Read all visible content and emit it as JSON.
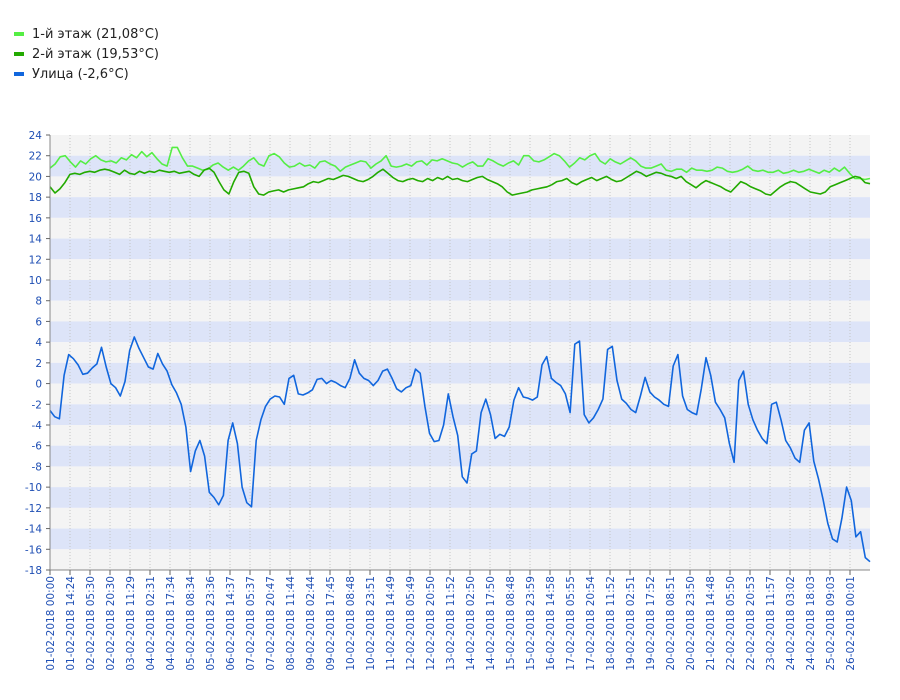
{
  "chart_data": {
    "type": "line",
    "title": "",
    "xlabel": "",
    "ylabel": "",
    "ylim": [
      -18,
      24
    ],
    "yticks": [
      24,
      22,
      20,
      18,
      16,
      14,
      12,
      10,
      8,
      6,
      4,
      2,
      0,
      -2,
      -4,
      -6,
      -8,
      -10,
      -12,
      -14,
      -16,
      -18
    ],
    "grid": "horizontal bands",
    "legend_position": "top-left",
    "x_tick_labels": [
      "01-02-2018 00:00",
      "01-02-2018 14:24",
      "02-02-2018 05:30",
      "02-02-2018 20:30",
      "03-02-2018 11:29",
      "04-02-2018 02:31",
      "04-02-2018 17:34",
      "05-02-2018 08:34",
      "05-02-2018 23:36",
      "06-02-2018 14:37",
      "07-02-2018 05:37",
      "07-02-2018 20:47",
      "08-02-2018 11:44",
      "09-02-2018 02:44",
      "09-02-2018 17:45",
      "10-02-2018 08:48",
      "10-02-2018 23:51",
      "11-02-2018 14:49",
      "12-02-2018 05:49",
      "12-02-2018 20:50",
      "13-02-2018 11:52",
      "14-02-2018 02:50",
      "14-02-2018 17:50",
      "15-02-2018 08:48",
      "15-02-2018 23:59",
      "16-02-2018 14:58",
      "17-02-2018 05:55",
      "17-02-2018 20:54",
      "18-02-2018 11:52",
      "19-02-2018 02:51",
      "19-02-2018 17:52",
      "20-02-2018 08:51",
      "20-02-2018 23:50",
      "21-02-2018 14:48",
      "22-02-2018 05:50",
      "22-02-2018 20:53",
      "23-02-2018 11:57",
      "24-02-2018 03:02",
      "24-02-2018 18:03",
      "25-02-2018 09:03",
      "26-02-2018 00:01"
    ],
    "series": [
      {
        "name": "1-й этаж (21,08°C)",
        "color": "#55ee44",
        "values": [
          20.8,
          21.2,
          21.9,
          22.0,
          21.4,
          20.9,
          21.5,
          21.2,
          21.7,
          22.0,
          21.6,
          21.4,
          21.5,
          21.3,
          21.8,
          21.6,
          22.1,
          21.8,
          22.4,
          21.9,
          22.3,
          21.7,
          21.2,
          21.0,
          22.8,
          22.8,
          21.8,
          21.0,
          21.0,
          20.8,
          20.6,
          20.7,
          21.1,
          21.3,
          20.9,
          20.6,
          20.9,
          20.6,
          21.0,
          21.5,
          21.8,
          21.2,
          21.0,
          22.0,
          22.2,
          21.9,
          21.3,
          20.9,
          21.0,
          21.3,
          21.0,
          21.1,
          20.8,
          21.4,
          21.5,
          21.2,
          21.0,
          20.5,
          20.9,
          21.1,
          21.3,
          21.5,
          21.4,
          20.8,
          21.2,
          21.5,
          22.0,
          21.0,
          20.9,
          21.0,
          21.2,
          21.0,
          21.4,
          21.5,
          21.1,
          21.6,
          21.5,
          21.7,
          21.5,
          21.3,
          21.2,
          20.9,
          21.2,
          21.4,
          21.0,
          21.0,
          21.7,
          21.5,
          21.2,
          21.0,
          21.3,
          21.5,
          21.1,
          22.0,
          22.0,
          21.5,
          21.4,
          21.6,
          21.9,
          22.2,
          22.0,
          21.5,
          20.9,
          21.3,
          21.8,
          21.6,
          22.0,
          22.2,
          21.5,
          21.2,
          21.7,
          21.4,
          21.2,
          21.5,
          21.8,
          21.5,
          21.0,
          20.8,
          20.8,
          21.0,
          21.2,
          20.6,
          20.5,
          20.7,
          20.7,
          20.4,
          20.8,
          20.6,
          20.6,
          20.5,
          20.6,
          20.9,
          20.8,
          20.5,
          20.4,
          20.5,
          20.7,
          21.0,
          20.6,
          20.5,
          20.6,
          20.4,
          20.4,
          20.6,
          20.3,
          20.4,
          20.6,
          20.4,
          20.5,
          20.7,
          20.5,
          20.3,
          20.6,
          20.4,
          20.8,
          20.5,
          20.9,
          20.3,
          19.8,
          19.8,
          19.7,
          19.8
        ]
      },
      {
        "name": "2-й этаж (19,53°C)",
        "color": "#22aa00",
        "values": [
          19.0,
          18.4,
          18.8,
          19.4,
          20.2,
          20.3,
          20.2,
          20.4,
          20.5,
          20.4,
          20.6,
          20.7,
          20.6,
          20.4,
          20.2,
          20.6,
          20.3,
          20.2,
          20.5,
          20.3,
          20.5,
          20.4,
          20.6,
          20.5,
          20.4,
          20.5,
          20.3,
          20.4,
          20.5,
          20.2,
          20.0,
          20.6,
          20.8,
          20.4,
          19.5,
          18.7,
          18.3,
          19.5,
          20.4,
          20.5,
          20.3,
          19.0,
          18.3,
          18.2,
          18.5,
          18.6,
          18.7,
          18.5,
          18.7,
          18.8,
          18.9,
          19.0,
          19.3,
          19.5,
          19.4,
          19.6,
          19.8,
          19.7,
          19.9,
          20.1,
          20.0,
          19.8,
          19.6,
          19.5,
          19.7,
          20.0,
          20.4,
          20.7,
          20.3,
          19.9,
          19.6,
          19.5,
          19.7,
          19.8,
          19.6,
          19.5,
          19.8,
          19.6,
          19.9,
          19.7,
          20.0,
          19.7,
          19.8,
          19.6,
          19.5,
          19.7,
          19.9,
          20.0,
          19.7,
          19.5,
          19.3,
          19.0,
          18.5,
          18.2,
          18.3,
          18.4,
          18.5,
          18.7,
          18.8,
          18.9,
          19.0,
          19.2,
          19.5,
          19.6,
          19.8,
          19.4,
          19.2,
          19.5,
          19.7,
          19.9,
          19.6,
          19.8,
          20.0,
          19.7,
          19.5,
          19.6,
          19.9,
          20.2,
          20.5,
          20.3,
          20.0,
          20.2,
          20.4,
          20.3,
          20.1,
          20.0,
          19.8,
          20.0,
          19.5,
          19.2,
          18.9,
          19.3,
          19.6,
          19.4,
          19.2,
          19.0,
          18.7,
          18.5,
          19.0,
          19.5,
          19.3,
          19.0,
          18.8,
          18.6,
          18.3,
          18.2,
          18.6,
          19.0,
          19.3,
          19.5,
          19.4,
          19.1,
          18.8,
          18.5,
          18.4,
          18.3,
          18.5,
          19.0,
          19.2,
          19.4,
          19.6,
          19.8,
          20.0,
          19.9,
          19.4,
          19.3
        ]
      },
      {
        "name": "Улица (-2,6°C)",
        "color": "#1166dd",
        "values": [
          -2.6,
          -3.2,
          -3.4,
          0.8,
          2.8,
          2.4,
          1.8,
          0.9,
          1.0,
          1.5,
          1.9,
          3.5,
          1.6,
          0.0,
          -0.4,
          -1.2,
          0.2,
          3.2,
          4.5,
          3.4,
          2.5,
          1.6,
          1.4,
          2.9,
          1.9,
          1.2,
          -0.1,
          -0.9,
          -2.0,
          -4.2,
          -8.5,
          -6.5,
          -5.5,
          -7.0,
          -10.5,
          -11.0,
          -11.7,
          -10.8,
          -5.5,
          -3.8,
          -5.8,
          -10.0,
          -11.5,
          -11.9,
          -5.5,
          -3.5,
          -2.2,
          -1.5,
          -1.2,
          -1.3,
          -2.0,
          0.5,
          0.8,
          -1.0,
          -1.1,
          -0.9,
          -0.6,
          0.4,
          0.5,
          0.0,
          0.3,
          0.1,
          -0.2,
          -0.4,
          0.5,
          2.3,
          1.0,
          0.5,
          0.3,
          -0.2,
          0.3,
          1.2,
          1.4,
          0.5,
          -0.5,
          -0.8,
          -0.4,
          -0.2,
          1.4,
          1.0,
          -2.2,
          -4.8,
          -5.6,
          -5.5,
          -4.0,
          -1.0,
          -3.2,
          -5.0,
          -9.0,
          -9.6,
          -6.8,
          -6.5,
          -2.8,
          -1.5,
          -3.0,
          -5.3,
          -4.9,
          -5.1,
          -4.2,
          -1.6,
          -0.4,
          -1.3,
          -1.4,
          -1.6,
          -1.3,
          1.8,
          2.6,
          0.5,
          0.1,
          -0.2,
          -1.0,
          -2.8,
          3.8,
          4.1,
          -3.0,
          -3.8,
          -3.3,
          -2.5,
          -1.5,
          3.3,
          3.6,
          0.3,
          -1.5,
          -1.9,
          -2.5,
          -2.8,
          -1.2,
          0.6,
          -0.8,
          -1.3,
          -1.6,
          -2.0,
          -2.2,
          1.7,
          2.8,
          -1.2,
          -2.5,
          -2.8,
          -3.0,
          -0.5,
          2.5,
          0.8,
          -1.8,
          -2.5,
          -3.3,
          -5.8,
          -7.6,
          0.3,
          1.2,
          -2.0,
          -3.5,
          -4.5,
          -5.3,
          -5.8,
          -2.0,
          -1.8,
          -3.5,
          -5.5,
          -6.2,
          -7.2,
          -7.6,
          -4.5,
          -3.8,
          -7.5,
          -9.2,
          -11.2,
          -13.5,
          -15.0,
          -15.3,
          -13.0,
          -10.0,
          -11.3,
          -14.8,
          -14.3,
          -16.8,
          -17.2
        ]
      }
    ]
  }
}
